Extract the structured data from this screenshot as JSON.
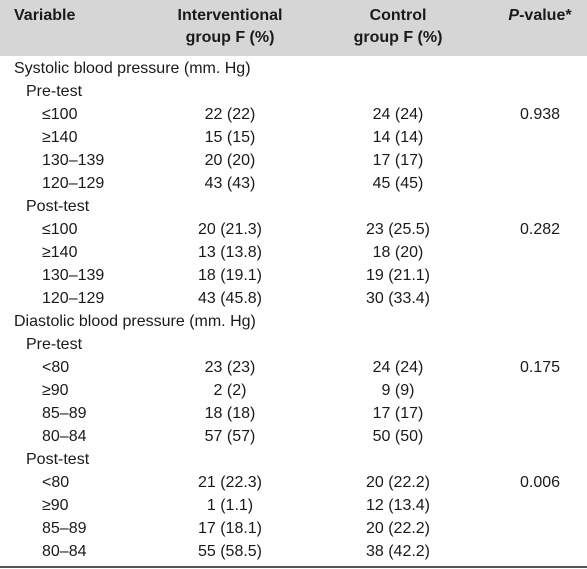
{
  "header": {
    "variable": "Variable",
    "interventional_line1": "Interventional",
    "interventional_line2": "group F (%)",
    "control_line1": "Control",
    "control_line2": "group F (%)",
    "p_italic": "P",
    "p_rest": "-value*"
  },
  "rows": [
    {
      "kind": "section",
      "label": "Systolic blood pressure (mm. Hg)",
      "int": "",
      "con": "",
      "p": ""
    },
    {
      "kind": "sub",
      "label": "Pre-test",
      "int": "",
      "con": "",
      "p": ""
    },
    {
      "kind": "item",
      "label": "≤100",
      "int": "22 (22)",
      "con": "24 (24)",
      "p": "0.938"
    },
    {
      "kind": "item",
      "label": "≥140",
      "int": "15 (15)",
      "con": "14 (14)",
      "p": ""
    },
    {
      "kind": "item",
      "label": "130–139",
      "int": "20 (20)",
      "con": "17 (17)",
      "p": ""
    },
    {
      "kind": "item",
      "label": "120–129",
      "int": "43 (43)",
      "con": "45 (45)",
      "p": ""
    },
    {
      "kind": "sub",
      "label": "Post-test",
      "int": "",
      "con": "",
      "p": ""
    },
    {
      "kind": "item",
      "label": "≤100",
      "int": "20 (21.3)",
      "con": "23 (25.5)",
      "p": "0.282"
    },
    {
      "kind": "item",
      "label": "≥140",
      "int": "13 (13.8)",
      "con": "18 (20)",
      "p": ""
    },
    {
      "kind": "item",
      "label": "130–139",
      "int": "18 (19.1)",
      "con": "19 (21.1)",
      "p": ""
    },
    {
      "kind": "item",
      "label": "120–129",
      "int": "43 (45.8)",
      "con": "30 (33.4)",
      "p": ""
    },
    {
      "kind": "section",
      "label": "Diastolic blood pressure (mm. Hg)",
      "int": "",
      "con": "",
      "p": ""
    },
    {
      "kind": "sub",
      "label": "Pre-test",
      "int": "",
      "con": "",
      "p": ""
    },
    {
      "kind": "item",
      "label": "<80",
      "int": "23 (23)",
      "con": "24 (24)",
      "p": "0.175"
    },
    {
      "kind": "item",
      "label": "≥90",
      "int": "2 (2)",
      "con": "9 (9)",
      "p": ""
    },
    {
      "kind": "item",
      "label": "85–89",
      "int": "18 (18)",
      "con": "17 (17)",
      "p": ""
    },
    {
      "kind": "item",
      "label": "80–84",
      "int": "57 (57)",
      "con": "50 (50)",
      "p": ""
    },
    {
      "kind": "sub",
      "label": "Post-test",
      "int": "",
      "con": "",
      "p": ""
    },
    {
      "kind": "item",
      "label": "<80",
      "int": "21 (22.3)",
      "con": "20 (22.2)",
      "p": "0.006"
    },
    {
      "kind": "item",
      "label": "≥90",
      "int": "1 (1.1)",
      "con": "12 (13.4)",
      "p": ""
    },
    {
      "kind": "item",
      "label": "85–89",
      "int": "17 (18.1)",
      "con": "20 (22.2)",
      "p": ""
    },
    {
      "kind": "item",
      "label": "80–84",
      "int": "55 (58.5)",
      "con": "38 (42.2)",
      "p": ""
    }
  ]
}
